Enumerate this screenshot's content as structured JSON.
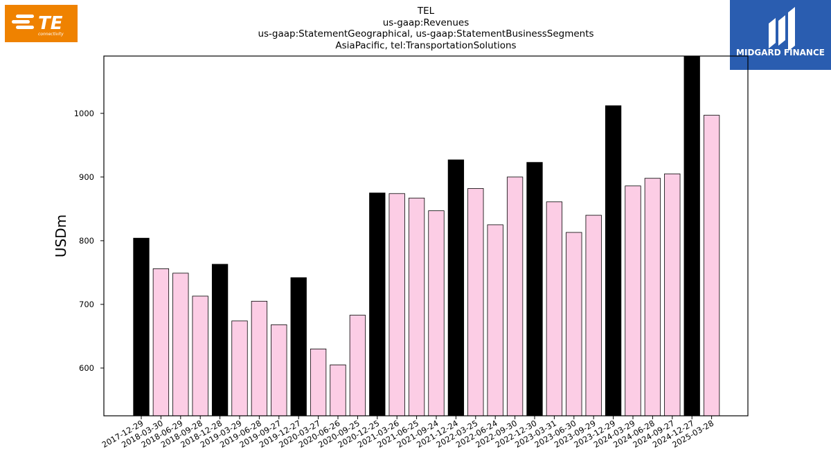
{
  "logos": {
    "left": {
      "text": "TE",
      "subtext": "connectivity",
      "color": "#ef8200"
    },
    "right": {
      "text": "MIDGARD FINANCE",
      "color": "#2a5db0"
    }
  },
  "chart_data": {
    "type": "bar",
    "title_lines": [
      "TEL",
      "us-gaap:Revenues",
      "us-gaap:StatementGeographical, us-gaap:StatementBusinessSegments",
      "AsiaPacific, tel:TransportationSolutions"
    ],
    "xlabel": "",
    "ylabel": "USDm",
    "ylim": [
      525,
      1090
    ],
    "yticks": [
      600,
      700,
      800,
      900,
      1000
    ],
    "grid": false,
    "categories": [
      "2017-12-29",
      "2018-03-30",
      "2018-06-29",
      "2018-09-28",
      "2018-12-28",
      "2019-03-29",
      "2019-06-28",
      "2019-09-27",
      "2019-12-27",
      "2020-03-27",
      "2020-06-26",
      "2020-09-25",
      "2020-12-25",
      "2021-03-26",
      "2021-06-25",
      "2021-09-24",
      "2021-12-24",
      "2022-03-25",
      "2022-06-24",
      "2022-09-30",
      "2022-12-30",
      "2023-03-31",
      "2023-06-30",
      "2023-09-29",
      "2023-12-29",
      "2024-03-29",
      "2024-06-28",
      "2024-09-27",
      "2024-12-27",
      "2025-03-28"
    ],
    "values": [
      804,
      756,
      749,
      713,
      763,
      674,
      705,
      668,
      742,
      630,
      605,
      683,
      875,
      874,
      867,
      847,
      927,
      882,
      825,
      900,
      923,
      861,
      813,
      840,
      1012,
      886,
      898,
      905,
      1090,
      997
    ],
    "highlight": [
      true,
      false,
      false,
      false,
      true,
      false,
      false,
      false,
      true,
      false,
      false,
      false,
      true,
      false,
      false,
      false,
      true,
      false,
      false,
      false,
      true,
      false,
      false,
      false,
      true,
      false,
      false,
      false,
      true,
      false
    ],
    "colors": {
      "highlight": "#000000",
      "normal": "#fccde5",
      "edge": "#000000"
    }
  }
}
